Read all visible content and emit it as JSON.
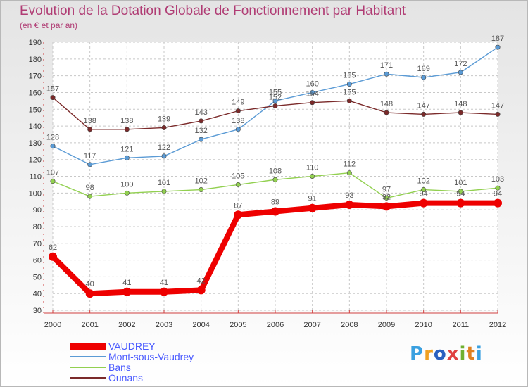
{
  "title": "Evolution de la Dotation Globale de Fonctionnement par Habitant",
  "subtitle": "(en € et par an)",
  "brand": {
    "letters": [
      "P",
      "r",
      "o",
      "x",
      "i",
      "t",
      "i"
    ],
    "colors": [
      "#3aa0e0",
      "#f0a020",
      "#2a60c0",
      "#e04040",
      "#70b030",
      "#e08020",
      "#3aa0e0"
    ]
  },
  "chart_data": {
    "type": "line",
    "title": "Evolution de la Dotation Globale de Fonctionnement par Habitant",
    "subtitle": "(en € et par an)",
    "xlabel": "",
    "ylabel": "",
    "x": [
      2000,
      2001,
      2002,
      2003,
      2004,
      2005,
      2006,
      2007,
      2008,
      2009,
      2010,
      2011,
      2012
    ],
    "ylim": [
      30,
      190
    ],
    "yticks": [
      30,
      40,
      50,
      60,
      70,
      80,
      90,
      100,
      110,
      120,
      130,
      140,
      150,
      160,
      170,
      180,
      190
    ],
    "grid": true,
    "legend_position": "bottom-left",
    "series": [
      {
        "name": "VAUDREY",
        "color": "#ee0000",
        "emphasis": true,
        "values": [
          62,
          40,
          41,
          41,
          42,
          87,
          89,
          91,
          93,
          92,
          94,
          94,
          94
        ]
      },
      {
        "name": "Mont-sous-Vaudrey",
        "color": "#5b9bd5",
        "values": [
          128,
          117,
          121,
          122,
          132,
          138,
          155,
          160,
          165,
          171,
          169,
          172,
          187
        ]
      },
      {
        "name": "Bans",
        "color": "#92d050",
        "values": [
          107,
          98,
          100,
          101,
          102,
          105,
          108,
          110,
          112,
          97,
          102,
          101,
          103
        ]
      },
      {
        "name": "Ounans",
        "color": "#7b2a2a",
        "values": [
          157,
          138,
          138,
          139,
          143,
          149,
          152,
          154,
          155,
          148,
          147,
          148,
          147
        ]
      }
    ]
  }
}
